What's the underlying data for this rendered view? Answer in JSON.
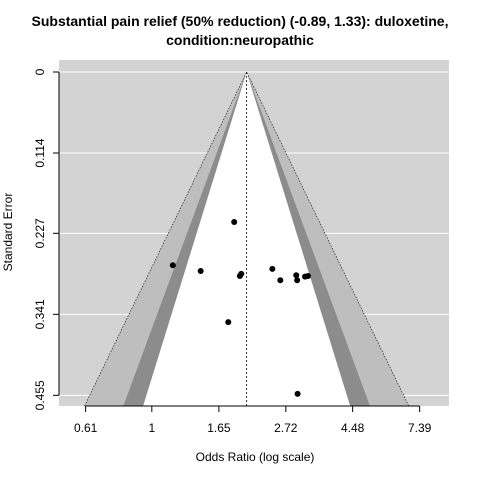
{
  "chart_data": {
    "type": "scatter",
    "variant": "contour-enhanced funnel plot",
    "title_line1": "Substantial pain relief (50% reduction) (-0.89, 1.33): duloxetine,",
    "title_line2": "condition:neuropathic",
    "xlabel": "Odds Ratio (log scale)",
    "ylabel": "Standard Error",
    "x_scale": "log",
    "x_ticks": [
      0.61,
      1,
      1.65,
      2.72,
      4.48,
      7.39
    ],
    "x_tick_labels": [
      "0.61",
      "1",
      "1.65",
      "2.72",
      "4.48",
      "7.39"
    ],
    "y_ticks": [
      0,
      0.114,
      0.227,
      0.341,
      0.455
    ],
    "y_tick_labels": [
      "0",
      "0.114",
      "0.227",
      "0.341",
      "0.455"
    ],
    "y_reversed": true,
    "xlim": [
      0.5,
      9.2
    ],
    "ylim": [
      0,
      0.47
    ],
    "pooled_estimate": 2.03,
    "contour_levels": [
      0.9,
      0.95,
      0.99
    ],
    "grid": true,
    "colors": {
      "background": "#d3d3d3",
      "contour_outer": "#bebebe",
      "contour_inner": "#8c8c8c",
      "funnel_center": "#ffffff",
      "points": "#000000"
    },
    "points": [
      {
        "x": 1.17,
        "y": 0.272
      },
      {
        "x": 1.44,
        "y": 0.28
      },
      {
        "x": 1.85,
        "y": 0.211
      },
      {
        "x": 1.93,
        "y": 0.287
      },
      {
        "x": 1.95,
        "y": 0.284
      },
      {
        "x": 1.77,
        "y": 0.352
      },
      {
        "x": 2.46,
        "y": 0.277
      },
      {
        "x": 2.61,
        "y": 0.293
      },
      {
        "x": 2.94,
        "y": 0.286
      },
      {
        "x": 2.96,
        "y": 0.293
      },
      {
        "x": 3.14,
        "y": 0.288
      },
      {
        "x": 3.21,
        "y": 0.287
      },
      {
        "x": 2.97,
        "y": 0.453
      }
    ]
  }
}
